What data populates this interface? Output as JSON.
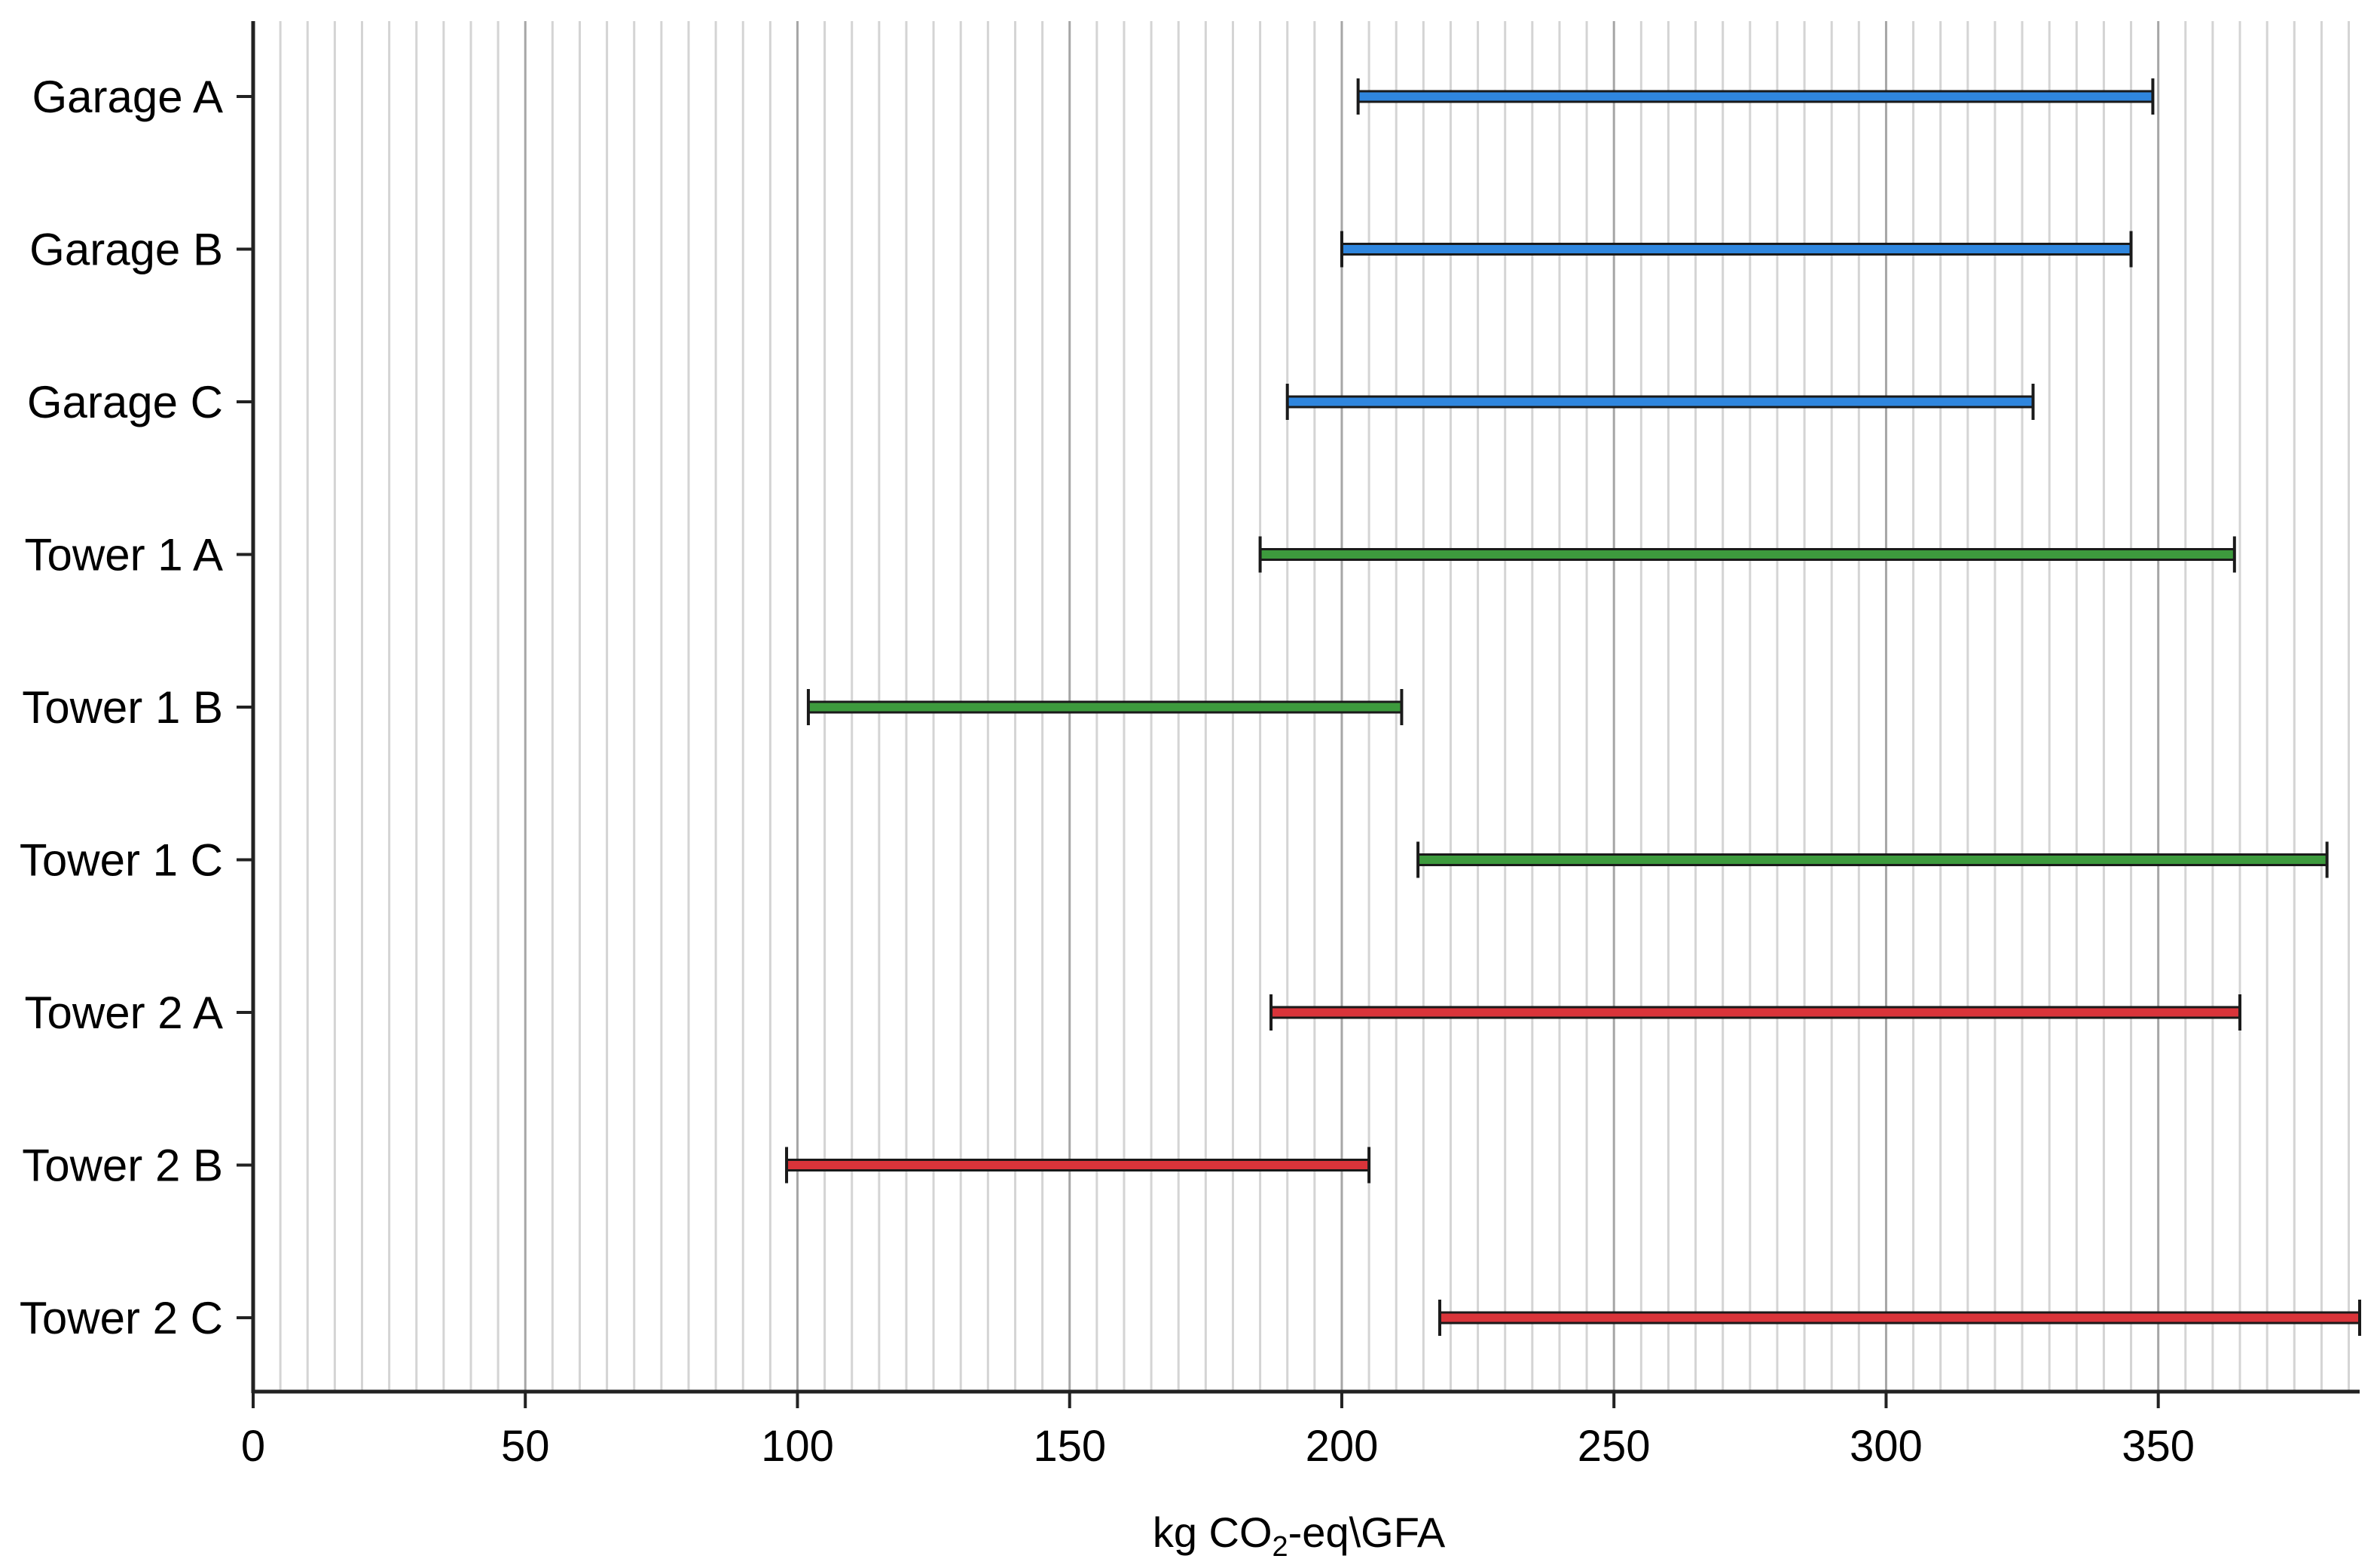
{
  "chart_data": {
    "type": "range-bar",
    "orientation": "horizontal",
    "title": "",
    "xlabel": "kg CO₂-eq\\GFA",
    "ylabel": "",
    "xlim": [
      0,
      387
    ],
    "x_ticks": [
      0,
      50,
      100,
      150,
      200,
      250,
      300,
      350
    ],
    "x_minor_step": 5,
    "grid": "vertical",
    "legend": "none",
    "categories": [
      "Garage A",
      "Garage B",
      "Garage C",
      "Tower 1 A",
      "Tower 1 B",
      "Tower 1 C",
      "Tower 2 A",
      "Tower 2 B",
      "Tower 2 C"
    ],
    "ranges": [
      {
        "label": "Garage A",
        "low": 203,
        "high": 349,
        "color": "#2f86de"
      },
      {
        "label": "Garage B",
        "low": 200,
        "high": 345,
        "color": "#2f86de"
      },
      {
        "label": "Garage C",
        "low": 190,
        "high": 327,
        "color": "#2f86de"
      },
      {
        "label": "Tower 1 A",
        "low": 185,
        "high": 364,
        "color": "#3d9a3d"
      },
      {
        "label": "Tower 1 B",
        "low": 102,
        "high": 211,
        "color": "#3d9a3d"
      },
      {
        "label": "Tower 1 C",
        "low": 214,
        "high": 381,
        "color": "#3d9a3d"
      },
      {
        "label": "Tower 2 A",
        "low": 187,
        "high": 365,
        "color": "#d9343a"
      },
      {
        "label": "Tower 2 B",
        "low": 98,
        "high": 205,
        "color": "#d9343a"
      },
      {
        "label": "Tower 2 C",
        "low": 218,
        "high": 387,
        "color": "#d9343a"
      }
    ]
  }
}
